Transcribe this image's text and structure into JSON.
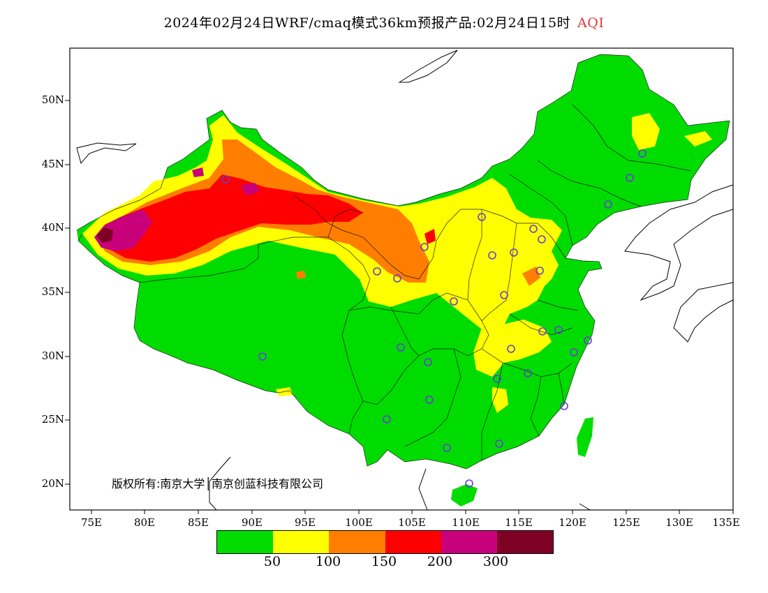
{
  "title": "2024年02月24日WRF/cmaq模式36km预报产品:02月24日15时",
  "title_variable": "AQI",
  "title_variable_color": "#e0353b",
  "y_axis_ticks": [
    "50N",
    "45N",
    "40N",
    "35N",
    "30N",
    "25N",
    "20N"
  ],
  "x_axis_ticks": [
    "75E",
    "80E",
    "85E",
    "90E",
    "95E",
    "100E",
    "105E",
    "110E",
    "115E",
    "120E",
    "125E",
    "130E",
    "135E"
  ],
  "legend": {
    "colors": [
      "#00dc00",
      "#ffff00",
      "#ff7e00",
      "#ff0000",
      "#c8007a",
      "#7e0023"
    ],
    "levels": [
      "50",
      "100",
      "150",
      "200",
      "300"
    ]
  },
  "copyright": "版权所有:南京大学│南京创蓝科技有限公司",
  "colors": {
    "good": "#00dc00",
    "moderate": "#ffff00",
    "usg": "#ff7e00",
    "unhealthy": "#ff0000",
    "very_unhealthy": "#c8007a",
    "hazardous": "#7e0023",
    "station_marker": "#6a3cd6"
  }
}
